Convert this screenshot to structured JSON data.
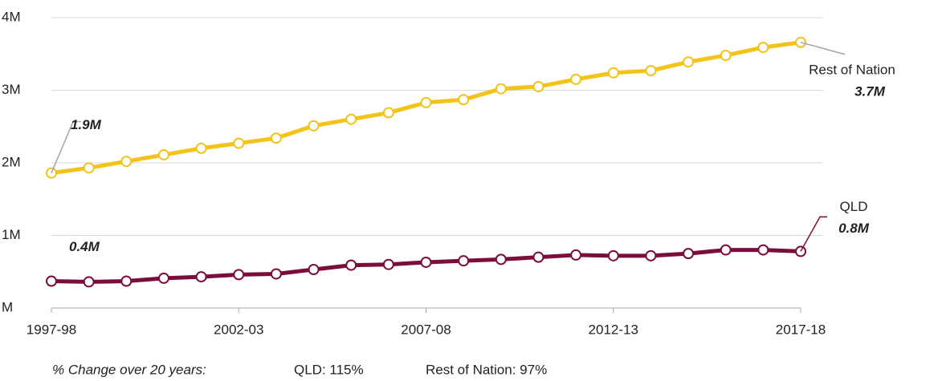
{
  "chart_data": {
    "type": "line",
    "categories": [
      "1997-98",
      null,
      null,
      null,
      null,
      "2002-03",
      null,
      null,
      null,
      null,
      "2007-08",
      null,
      null,
      null,
      null,
      "2012-13",
      null,
      null,
      null,
      null,
      "2017-18"
    ],
    "series": [
      {
        "name": "Rest of Nation",
        "color": "#f2c318",
        "start_label": "1.9M",
        "end_label": "3.7M",
        "values": [
          1.86,
          1.93,
          2.02,
          2.11,
          2.2,
          2.27,
          2.34,
          2.51,
          2.6,
          2.69,
          2.83,
          2.87,
          3.02,
          3.05,
          3.15,
          3.24,
          3.27,
          3.39,
          3.48,
          3.59,
          3.66
        ]
      },
      {
        "name": "QLD",
        "color": "#7a0d3b",
        "start_label": "0.4M",
        "end_label": "0.8M",
        "values": [
          0.37,
          0.36,
          0.37,
          0.41,
          0.43,
          0.46,
          0.47,
          0.53,
          0.59,
          0.6,
          0.63,
          0.65,
          0.67,
          0.7,
          0.73,
          0.72,
          0.72,
          0.75,
          0.8,
          0.8,
          0.78
        ]
      }
    ],
    "ylim": [
      0,
      4
    ],
    "yticks": [
      {
        "value": 0,
        "label": "M"
      },
      {
        "value": 1,
        "label": "1M"
      },
      {
        "value": 2,
        "label": "2M"
      },
      {
        "value": 3,
        "label": "3M"
      },
      {
        "value": 4,
        "label": "4M"
      }
    ],
    "grid": true,
    "footnote": {
      "label": "% Change over 20 years:",
      "items": [
        "QLD: 115%",
        "Rest of Nation: 97%"
      ]
    }
  }
}
